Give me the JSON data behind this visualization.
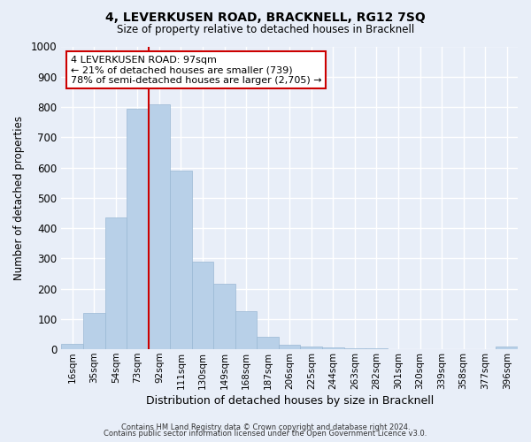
{
  "title_line1": "4, LEVERKUSEN ROAD, BRACKNELL, RG12 7SQ",
  "title_line2": "Size of property relative to detached houses in Bracknell",
  "xlabel": "Distribution of detached houses by size in Bracknell",
  "ylabel": "Number of detached properties",
  "bar_labels": [
    "16sqm",
    "35sqm",
    "54sqm",
    "73sqm",
    "92sqm",
    "111sqm",
    "130sqm",
    "149sqm",
    "168sqm",
    "187sqm",
    "206sqm",
    "225sqm",
    "244sqm",
    "263sqm",
    "282sqm",
    "301sqm",
    "320sqm",
    "339sqm",
    "358sqm",
    "377sqm",
    "396sqm"
  ],
  "bar_values": [
    18,
    120,
    435,
    795,
    810,
    590,
    290,
    215,
    125,
    40,
    15,
    10,
    5,
    2,
    2,
    1,
    0,
    0,
    0,
    0,
    10
  ],
  "bar_color": "#b8d0e8",
  "bar_edge_color": "#9ab8d4",
  "vline_index": 4,
  "vline_color": "#cc0000",
  "annotation_title": "4 LEVERKUSEN ROAD: 97sqm",
  "annotation_line2": "← 21% of detached houses are smaller (739)",
  "annotation_line3": "78% of semi-detached houses are larger (2,705) →",
  "annotation_box_facecolor": "#ffffff",
  "annotation_box_edgecolor": "#cc0000",
  "ylim": [
    0,
    1000
  ],
  "yticks": [
    0,
    100,
    200,
    300,
    400,
    500,
    600,
    700,
    800,
    900,
    1000
  ],
  "background_color": "#e8eef8",
  "plot_background": "#e8eef8",
  "grid_color": "#ffffff",
  "footer_line1": "Contains HM Land Registry data © Crown copyright and database right 2024.",
  "footer_line2": "Contains public sector information licensed under the Open Government Licence v3.0."
}
